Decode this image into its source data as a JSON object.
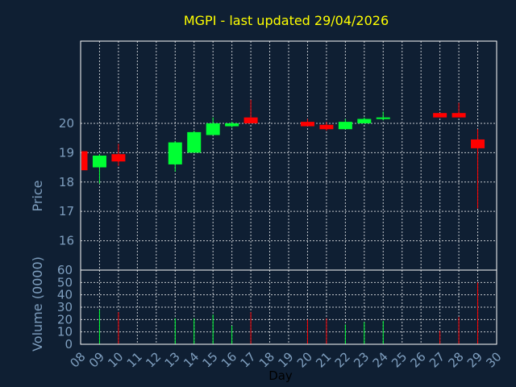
{
  "chart_data": {
    "type": "candlestick",
    "title": "MGPI - last updated 29/04/2026",
    "xlabel": "Day",
    "price_panel": {
      "ylabel": "Price",
      "ylim": [
        15,
        22.8
      ],
      "yticks": [
        16,
        17,
        18,
        19,
        20
      ],
      "grid": true
    },
    "volume_panel": {
      "ylabel": "Volume (0000)",
      "ylim": [
        0,
        60
      ],
      "yticks": [
        0,
        10,
        20,
        30,
        40,
        50,
        60
      ],
      "grid": true
    },
    "x_ticks": [
      "08",
      "09",
      "10",
      "11",
      "12",
      "13",
      "14",
      "15",
      "16",
      "17",
      "18",
      "19",
      "20",
      "21",
      "22",
      "23",
      "24",
      "25",
      "26",
      "27",
      "28",
      "29",
      "30"
    ],
    "candles": [
      {
        "day": "08",
        "open": 19.05,
        "high": 19.05,
        "low": 18.4,
        "close": 18.4,
        "volume": 0
      },
      {
        "day": "09",
        "open": 18.5,
        "high": 18.95,
        "low": 17.95,
        "close": 18.9,
        "volume": 28
      },
      {
        "day": "10",
        "open": 18.95,
        "high": 19.3,
        "low": 18.55,
        "close": 18.7,
        "volume": 26
      },
      {
        "day": "13",
        "open": 18.6,
        "high": 19.4,
        "low": 18.35,
        "close": 19.35,
        "volume": 21
      },
      {
        "day": "14",
        "open": 19.0,
        "high": 19.75,
        "low": 19.0,
        "close": 19.7,
        "volume": 21
      },
      {
        "day": "15",
        "open": 19.6,
        "high": 20.2,
        "low": 19.6,
        "close": 20.0,
        "volume": 24
      },
      {
        "day": "16",
        "open": 19.9,
        "high": 20.05,
        "low": 19.85,
        "close": 20.0,
        "volume": 15
      },
      {
        "day": "17",
        "open": 20.2,
        "high": 20.8,
        "low": 20.0,
        "close": 20.0,
        "volume": 26
      },
      {
        "day": "20",
        "open": 20.05,
        "high": 20.15,
        "low": 19.9,
        "close": 19.9,
        "volume": 20
      },
      {
        "day": "21",
        "open": 19.95,
        "high": 20.05,
        "low": 19.75,
        "close": 19.8,
        "volume": 21
      },
      {
        "day": "22",
        "open": 19.8,
        "high": 20.15,
        "low": 19.8,
        "close": 20.05,
        "volume": 16
      },
      {
        "day": "23",
        "open": 20.0,
        "high": 20.2,
        "low": 20.0,
        "close": 20.15,
        "volume": 18
      },
      {
        "day": "24",
        "open": 20.15,
        "high": 20.4,
        "low": 20.1,
        "close": 20.2,
        "volume": 19
      },
      {
        "day": "27",
        "open": 20.35,
        "high": 20.35,
        "low": 20.2,
        "close": 20.2,
        "volume": 11
      },
      {
        "day": "28",
        "open": 20.35,
        "high": 20.7,
        "low": 20.2,
        "close": 20.2,
        "volume": 22
      },
      {
        "day": "29",
        "open": 19.45,
        "high": 19.8,
        "low": 17.1,
        "close": 19.15,
        "volume": 50
      }
    ],
    "colors": {
      "background": "#0f1f33",
      "axis": "#ffffff",
      "grid": "#ffffff",
      "label": "#7f9fbf",
      "title": "#ffff00",
      "up": "#00ff33",
      "down": "#ff0000"
    }
  }
}
